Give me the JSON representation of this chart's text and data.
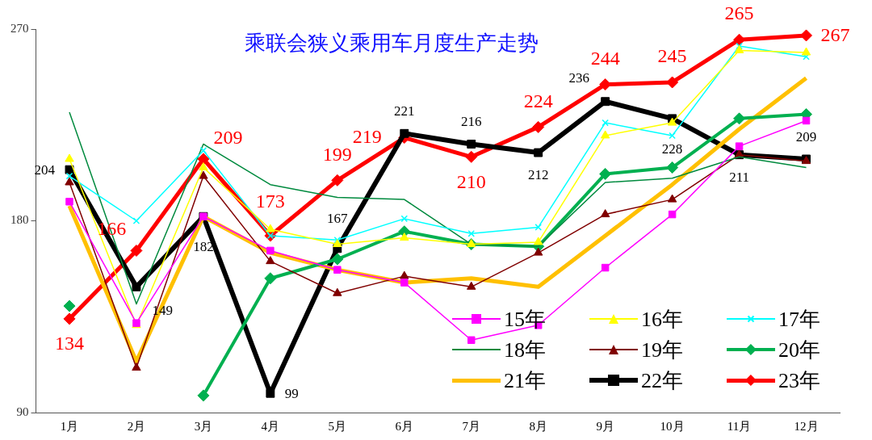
{
  "chart_data": {
    "type": "line",
    "title": "乘联会狭义乘用车月度生产走势",
    "categories": [
      "1月",
      "2月",
      "3月",
      "4月",
      "5月",
      "6月",
      "7月",
      "8月",
      "9月",
      "10月",
      "11月",
      "12月"
    ],
    "ylim": [
      90,
      270
    ],
    "yticks": [
      90,
      180,
      270
    ],
    "grid": false,
    "legend": "bottom right",
    "series": [
      {
        "name": "15年",
        "color": "#ff00ff",
        "marker": "square",
        "values": [
          189,
          132,
          182,
          166,
          157,
          151,
          124,
          131,
          158,
          183,
          215,
          227
        ]
      },
      {
        "name": "16年",
        "color": "#ffff00",
        "marker": "triangle",
        "values": [
          209,
          131,
          205,
          176,
          169,
          172,
          169,
          170,
          220,
          226,
          260,
          259
        ]
      },
      {
        "name": "17年",
        "color": "#00ffff",
        "marker": "cross",
        "values": [
          201,
          180,
          213,
          173,
          171,
          181,
          174,
          177,
          226,
          220,
          262,
          257
        ]
      },
      {
        "name": "18年",
        "color": "#008a3e",
        "marker": "none",
        "values": [
          231,
          141,
          216,
          197,
          191,
          190,
          169,
          168,
          198,
          200,
          210,
          205
        ]
      },
      {
        "name": "19年",
        "color": "#800000",
        "marker": "triangle",
        "values": [
          198,
          111,
          201,
          161,
          146,
          154,
          149,
          165,
          183,
          190,
          211,
          208
        ]
      },
      {
        "name": "20年",
        "color": "#00b050",
        "marker": "diamond",
        "values": [
          140,
          null,
          98,
          153,
          162,
          175,
          169,
          168,
          202,
          205,
          228,
          230
        ]
      },
      {
        "name": "21年",
        "color": "#ffc000",
        "marker": "none",
        "values": [
          187,
          114,
          182,
          165,
          157,
          151,
          153,
          149,
          173,
          197,
          223,
          247
        ]
      },
      {
        "name": "22年",
        "color": "#000000",
        "marker": "square",
        "values": [
          204,
          149,
          182,
          99,
          167,
          221,
          216,
          212,
          236,
          228,
          211,
          209
        ],
        "value_labels": [
          "204",
          "149",
          "182",
          "99",
          "167",
          "221",
          "216",
          "212",
          "236",
          "228",
          "211",
          "209"
        ]
      },
      {
        "name": "23年",
        "color": "#ff0000",
        "marker": "diamond",
        "values": [
          134,
          166,
          209,
          173,
          199,
          219,
          210,
          224,
          244,
          245,
          265,
          267
        ],
        "value_labels": [
          "134",
          "166",
          "209",
          "173",
          "199",
          "219",
          "210",
          "224",
          "244",
          "245",
          "265",
          "267"
        ]
      }
    ]
  }
}
